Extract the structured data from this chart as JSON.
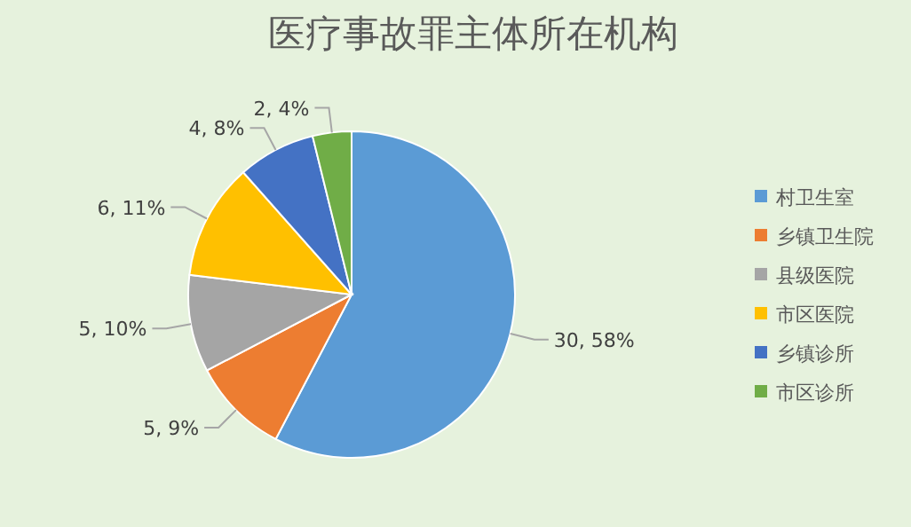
{
  "chart_data": {
    "type": "pie",
    "title": "医疗事故罪主体所在机构",
    "categories": [
      "村卫生室",
      "乡镇卫生院",
      "县级医院",
      "市区医院",
      "乡镇诊所",
      "市区诊所"
    ],
    "values": [
      30,
      5,
      5,
      6,
      4,
      2
    ],
    "colors": [
      "#5b9bd5",
      "#ed7d31",
      "#a5a5a5",
      "#ffc000",
      "#4472c4",
      "#70ad47"
    ],
    "value_labels": [
      "30, 58%",
      "5, 9%",
      "5, 10%",
      "6, 11%",
      "4, 8%",
      "2, 4%"
    ],
    "legend": "right"
  }
}
